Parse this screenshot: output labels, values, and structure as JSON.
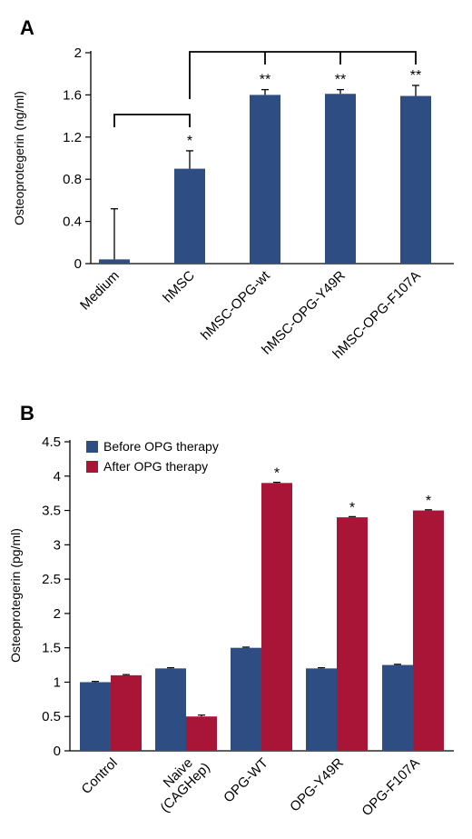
{
  "chart_data": [
    {
      "panel": "A",
      "type": "bar",
      "ylabel": "Osteoprotegerin (ng/ml)",
      "ylim": [
        0,
        2
      ],
      "yticks": [
        "0",
        "0.4",
        "0.8",
        "1.2",
        "1.6",
        "2"
      ],
      "categories": [
        "Medium",
        "hMSC",
        "hMSC-OPG-wt",
        "hMSC-OPG-Y49R",
        "hMSC-OPG-F107A"
      ],
      "values": [
        0.04,
        0.9,
        1.6,
        1.61,
        1.59
      ],
      "errors": [
        0.48,
        0.17,
        0.05,
        0.04,
        0.1
      ],
      "significance": [
        "",
        "*",
        "**",
        "**",
        "**"
      ],
      "color": "#2e4d82"
    },
    {
      "panel": "B",
      "type": "bar",
      "ylabel": "Osteoprotegerin (pg/ml)",
      "ylim": [
        0,
        4.5
      ],
      "yticks": [
        "0",
        "0.5",
        "1",
        "1.5",
        "2",
        "2.5",
        "3",
        "3.5",
        "4",
        "4.5"
      ],
      "categories": [
        [
          "Control"
        ],
        [
          "Naive",
          "(CAGHep)"
        ],
        [
          "OPG-WT"
        ],
        [
          "OPG-Y49R"
        ],
        [
          "OPG-F107A"
        ]
      ],
      "series": [
        {
          "name": "Before OPG therapy",
          "values": [
            1.0,
            1.2,
            1.5,
            1.2,
            1.25
          ],
          "errors": [
            0.01,
            0.01,
            0.01,
            0.01,
            0.01
          ],
          "color": "#2e4d82"
        },
        {
          "name": "After OPG therapy",
          "values": [
            1.1,
            0.5,
            3.9,
            3.4,
            3.5
          ],
          "errors": [
            0.01,
            0.02,
            0.01,
            0.01,
            0.01
          ],
          "color": "#a81537"
        }
      ],
      "significance": [
        "",
        "",
        "*",
        "*",
        "*"
      ],
      "legend_position": "top-left"
    }
  ]
}
